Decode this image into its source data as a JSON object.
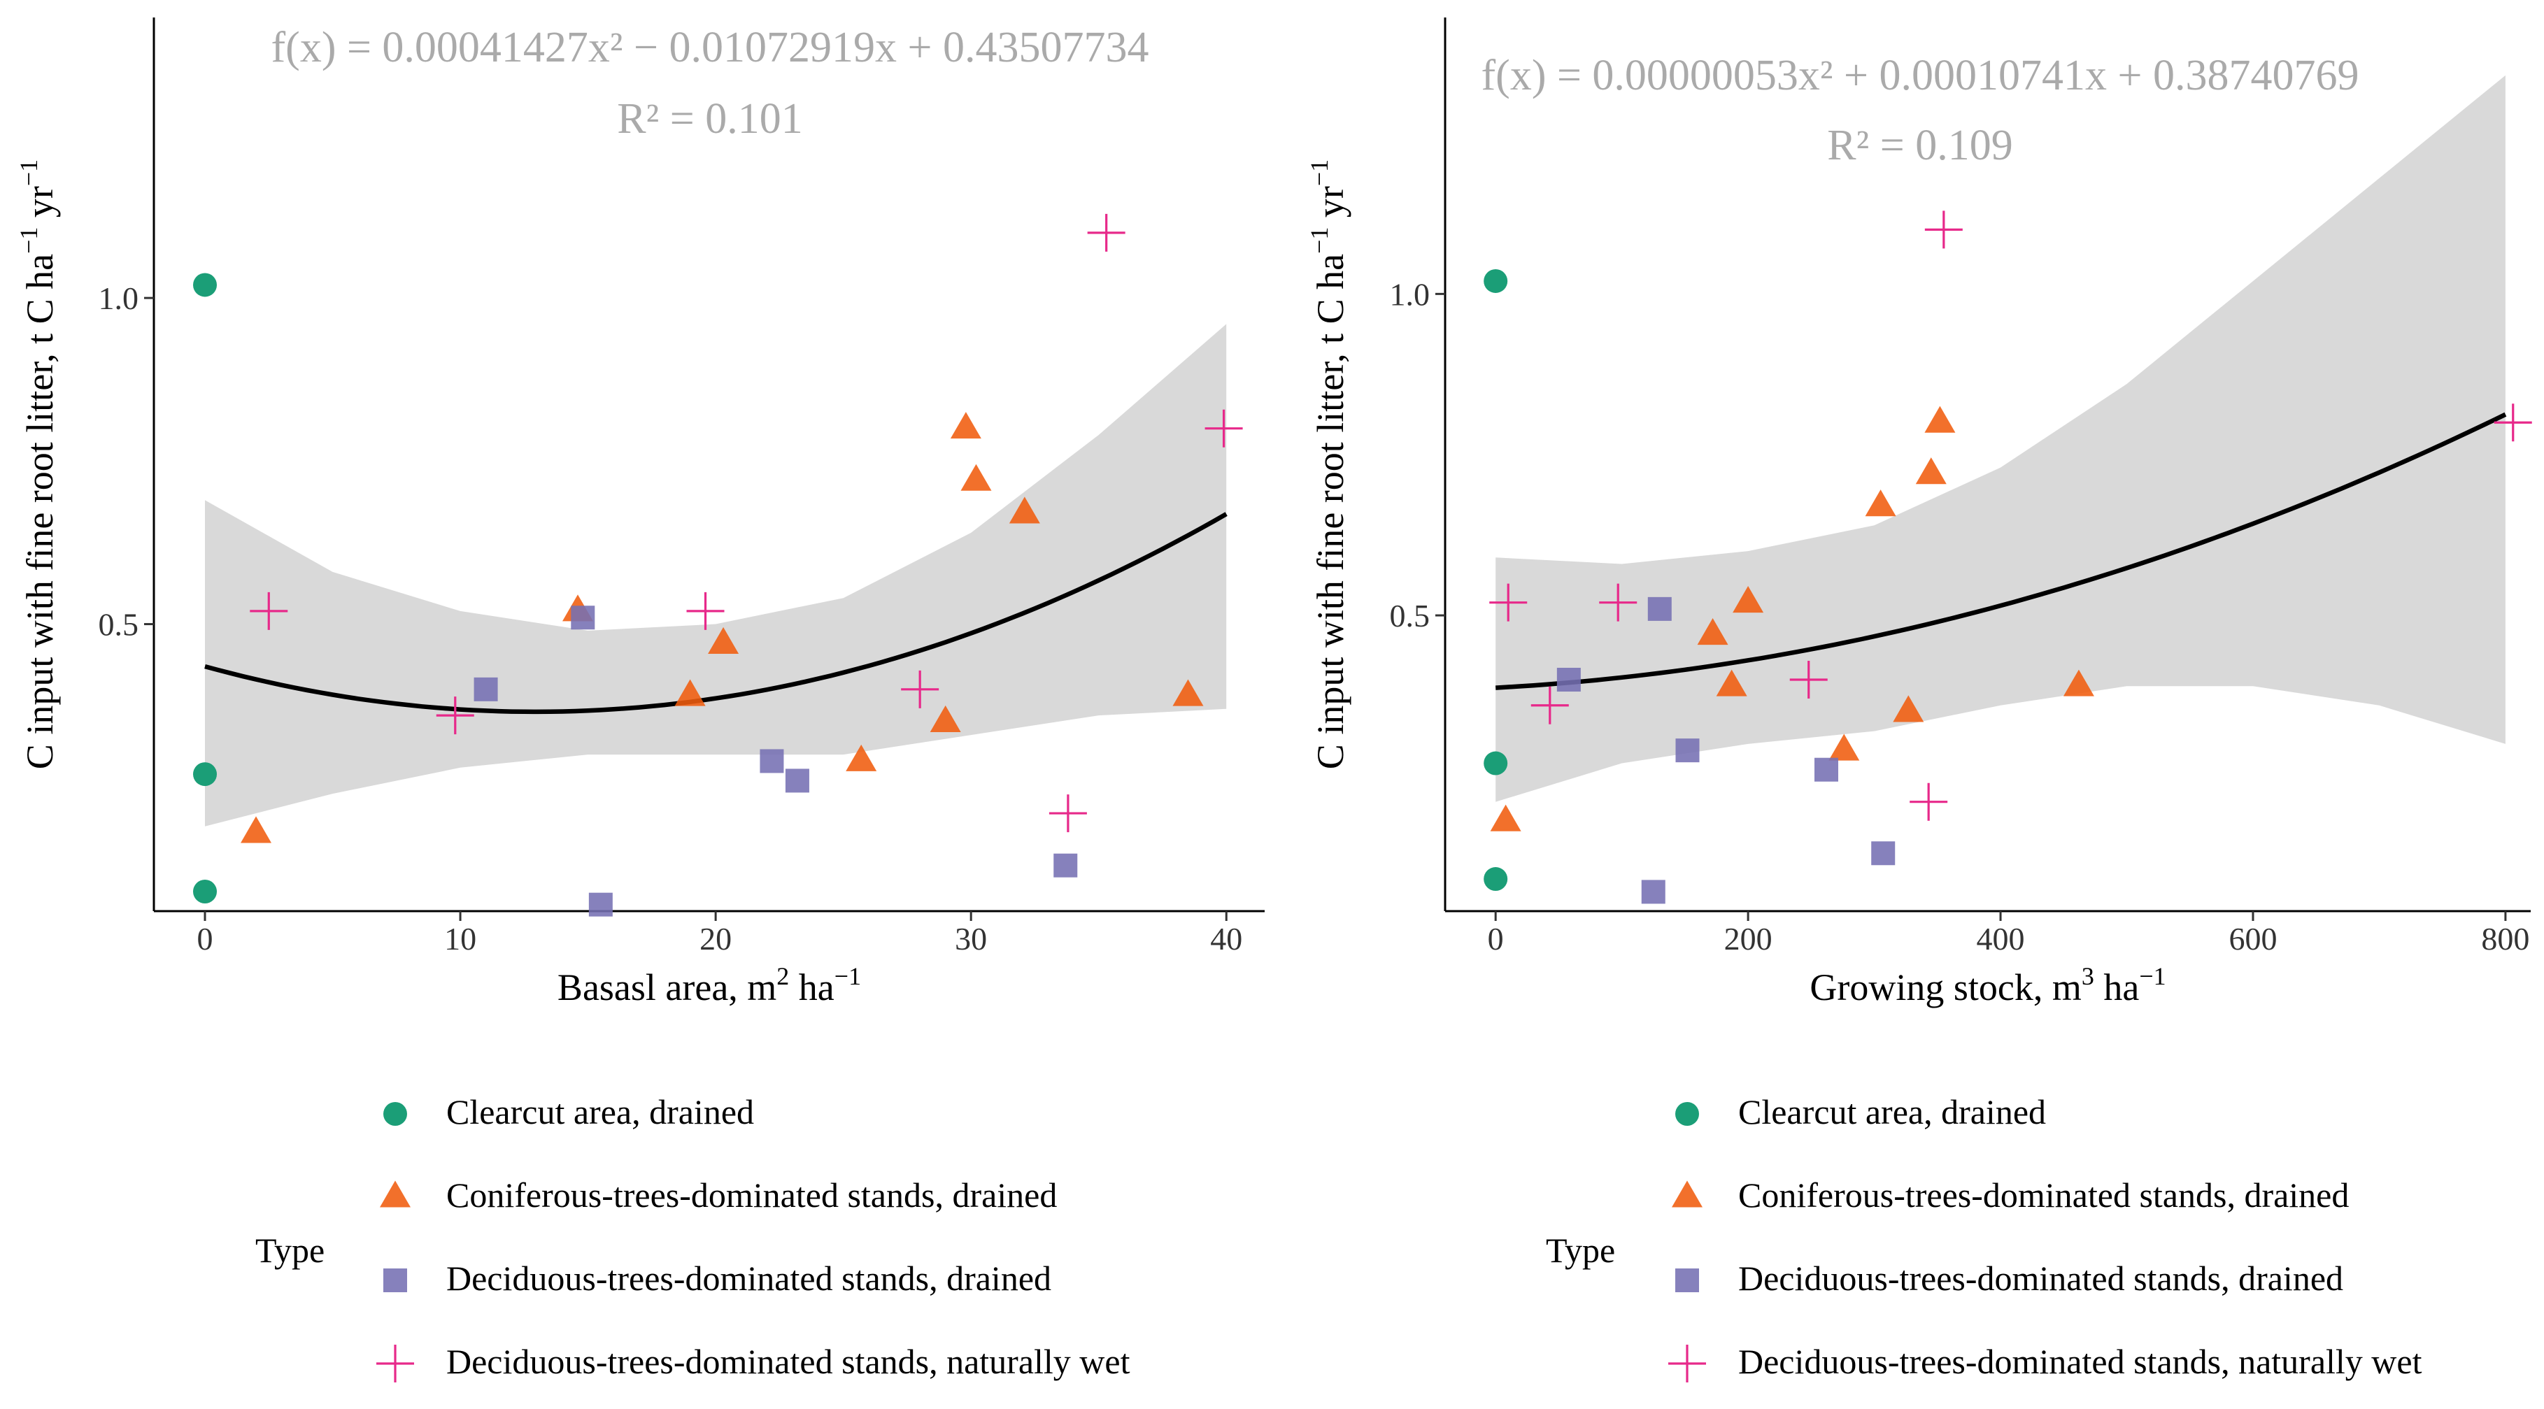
{
  "chart_data": [
    {
      "type": "scatter",
      "equation": {
        "fx": "f(x) = 0.00041427x² − 0.01072919x + 0.43507734",
        "r2": "R² = 0.101"
      },
      "fit_coefficients": {
        "a": 0.00041427,
        "b": -0.01072919,
        "c": 0.43507734
      },
      "ci_band": {
        "x": [
          0,
          5,
          10,
          15,
          20,
          25,
          30,
          35,
          40
        ],
        "lower": [
          0.19,
          0.24,
          0.28,
          0.3,
          0.3,
          0.3,
          0.33,
          0.36,
          0.37
        ],
        "upper": [
          0.69,
          0.58,
          0.52,
          0.49,
          0.5,
          0.54,
          0.64,
          0.79,
          0.96
        ]
      },
      "xlabel": {
        "main": "Basasl area,  m",
        "sup1": "2",
        "unit": " ha",
        "sup2": "−1"
      },
      "ylabel": {
        "main": "C input with fine root litter, t C ha",
        "sup1": "−1",
        "unit": "  yr",
        "sup2": "−1"
      },
      "xlim": [
        -2,
        41.5
      ],
      "ylim": [
        0.06,
        1.43
      ],
      "xticks": [
        {
          "v": 0,
          "label": "0"
        },
        {
          "v": 10,
          "label": "10"
        },
        {
          "v": 20,
          "label": "20"
        },
        {
          "v": 30,
          "label": "30"
        },
        {
          "v": 40,
          "label": "40"
        }
      ],
      "yticks": [
        {
          "v": 0.5,
          "label": "0.5"
        },
        {
          "v": 1.0,
          "label": "1.0"
        }
      ],
      "series": [
        {
          "name": "Clearcut area, drained",
          "shape": "circle",
          "points": [
            [
              0,
              1.02
            ],
            [
              0,
              0.27
            ],
            [
              0,
              0.09
            ]
          ]
        },
        {
          "name": "Coniferous-trees-dominated stands, drained",
          "shape": "triangle",
          "points": [
            [
              2,
              0.18
            ],
            [
              14.6,
              0.52
            ],
            [
              19,
              0.39
            ],
            [
              20.3,
              0.47
            ],
            [
              25.7,
              0.29
            ],
            [
              29,
              0.35
            ],
            [
              29.8,
              0.8
            ],
            [
              30.2,
              0.72
            ],
            [
              32.1,
              0.67
            ],
            [
              38.5,
              0.39
            ]
          ]
        },
        {
          "name": "Deciduous-trees-dominated stands, drained",
          "shape": "square",
          "points": [
            [
              11,
              0.4
            ],
            [
              14.8,
              0.51
            ],
            [
              15.5,
              0.07
            ],
            [
              22.2,
              0.29
            ],
            [
              23.2,
              0.26
            ],
            [
              33.7,
              0.13
            ]
          ]
        },
        {
          "name": "Deciduous-trees-dominated stands, naturally wet",
          "shape": "plus",
          "points": [
            [
              2.5,
              0.52
            ],
            [
              9.8,
              0.36
            ],
            [
              19.6,
              0.52
            ],
            [
              28,
              0.4
            ],
            [
              33.8,
              0.21
            ],
            [
              35.3,
              1.1
            ],
            [
              39.9,
              0.8
            ]
          ]
        }
      ]
    },
    {
      "type": "scatter",
      "equation": {
        "fx": "f(x) = 0.00000053x² + 0.00010741x + 0.38740769",
        "r2": "R² = 0.109"
      },
      "fit_coefficients": {
        "a": 5.3e-07,
        "b": 0.00010741,
        "c": 0.38740769
      },
      "ci_band": {
        "x": [
          0,
          100,
          200,
          300,
          400,
          500,
          600,
          700,
          800
        ],
        "lower": [
          0.21,
          0.27,
          0.3,
          0.32,
          0.36,
          0.39,
          0.39,
          0.36,
          0.3
        ],
        "upper": [
          0.59,
          0.58,
          0.6,
          0.64,
          0.73,
          0.86,
          1.02,
          1.18,
          1.34
        ]
      },
      "xlabel": {
        "main": "Growing stock,  m",
        "sup1": "3",
        "unit": " ha",
        "sup2": "−1"
      },
      "ylabel": {
        "main": "C input with fine root litter, t C ha",
        "sup1": "−1",
        "unit": "  yr",
        "sup2": "−1"
      },
      "xlim": [
        -40,
        820
      ],
      "ylim": [
        0.04,
        1.43
      ],
      "xticks": [
        {
          "v": 0,
          "label": "0"
        },
        {
          "v": 200,
          "label": "200"
        },
        {
          "v": 400,
          "label": "400"
        },
        {
          "v": 600,
          "label": "600"
        },
        {
          "v": 800,
          "label": "800"
        }
      ],
      "yticks": [
        {
          "v": 0.5,
          "label": "0.5"
        },
        {
          "v": 1.0,
          "label": "1.0"
        }
      ],
      "series": [
        {
          "name": "Clearcut area, drained",
          "shape": "circle",
          "points": [
            [
              0,
              1.02
            ],
            [
              0,
              0.27
            ],
            [
              0,
              0.09
            ]
          ]
        },
        {
          "name": "Coniferous-trees-dominated stands, drained",
          "shape": "triangle",
          "points": [
            [
              8,
              0.18
            ],
            [
              172,
              0.47
            ],
            [
              187,
              0.39
            ],
            [
              200,
              0.52
            ],
            [
              276,
              0.29
            ],
            [
              305,
              0.67
            ],
            [
              327,
              0.35
            ],
            [
              345,
              0.72
            ],
            [
              352,
              0.8
            ],
            [
              462,
              0.39
            ]
          ]
        },
        {
          "name": "Deciduous-trees-dominated stands, drained",
          "shape": "square",
          "points": [
            [
              58,
              0.4
            ],
            [
              125,
              0.07
            ],
            [
              130,
              0.51
            ],
            [
              152,
              0.29
            ],
            [
              262,
              0.26
            ],
            [
              307,
              0.13
            ]
          ]
        },
        {
          "name": "Deciduous-trees-dominated stands, naturally wet",
          "shape": "plus",
          "points": [
            [
              10,
              0.52
            ],
            [
              43,
              0.36
            ],
            [
              97,
              0.52
            ],
            [
              248,
              0.4
            ],
            [
              343,
              0.21
            ],
            [
              355,
              1.1
            ],
            [
              806,
              0.8
            ]
          ]
        }
      ]
    }
  ],
  "legend": {
    "title": "Type",
    "items": [
      {
        "label": "Clearcut area, drained",
        "shape": "circle",
        "color": "#1b9e77"
      },
      {
        "label": "Coniferous-trees-dominated stands, drained",
        "shape": "triangle",
        "color": "#f05c0e"
      },
      {
        "label": "Deciduous-trees-dominated stands, drained",
        "shape": "square",
        "color": "#7570b3"
      },
      {
        "label": "Deciduous-trees-dominated stands, naturally wet",
        "shape": "plus",
        "color": "#e7298a"
      }
    ]
  },
  "colors": {
    "circle": "#1b9e77",
    "triangle": "#f05c0e",
    "square": "#7570b3",
    "plus": "#e7298a",
    "band": "#d9d9d9",
    "fit": "#000000",
    "equation": "#aaaaaa"
  }
}
